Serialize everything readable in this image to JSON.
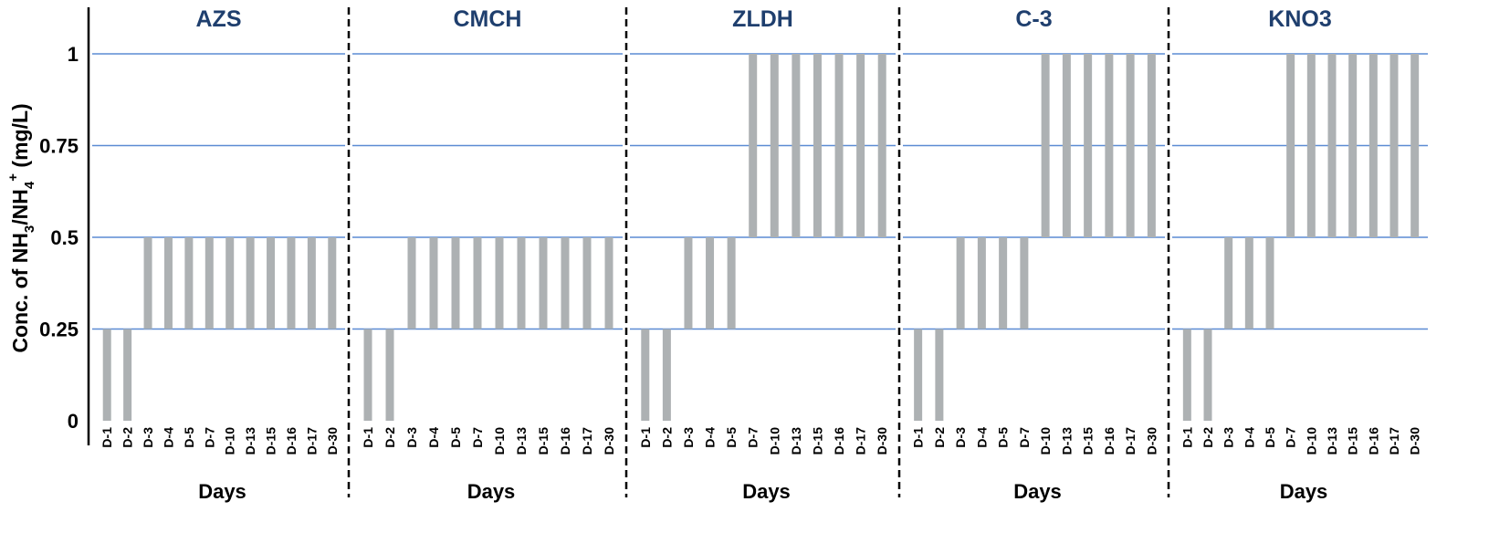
{
  "chart_data": {
    "type": "bar",
    "ylabel": {
      "prefix": "Conc. of NH",
      "sub1": "3",
      "middle": "/NH",
      "sub2": "4",
      "sup": "+",
      "suffix": " (mg/L)"
    },
    "xlabel": "Days",
    "ylim": [
      0,
      1.125
    ],
    "yticks": [
      0,
      0.25,
      0.5,
      0.75,
      1
    ],
    "ytick_labels": [
      "0",
      "0.25",
      "0.5",
      "0.75",
      "1"
    ],
    "grid": "horizontal",
    "bar_color": "#adb1b3",
    "grid_color": "#5b8bd3",
    "title_color": "#1f3f6e",
    "panels": [
      {
        "title": "AZS",
        "categories": [
          "D-1",
          "D-2",
          "D-3",
          "D-4",
          "D-5",
          "D-7",
          "D-10",
          "D-13",
          "D-15",
          "D-16",
          "D-17",
          "D-30"
        ],
        "ranges": [
          [
            0,
            0.25
          ],
          [
            0,
            0.25
          ],
          [
            0.25,
            0.5
          ],
          [
            0.25,
            0.5
          ],
          [
            0.25,
            0.5
          ],
          [
            0.25,
            0.5
          ],
          [
            0.25,
            0.5
          ],
          [
            0.25,
            0.5
          ],
          [
            0.25,
            0.5
          ],
          [
            0.25,
            0.5
          ],
          [
            0.25,
            0.5
          ],
          [
            0.25,
            0.5
          ]
        ]
      },
      {
        "title": "CMCH",
        "categories": [
          "D-1",
          "D-2",
          "D-3",
          "D-4",
          "D-5",
          "D-7",
          "D-10",
          "D-13",
          "D-15",
          "D-16",
          "D-17",
          "D-30"
        ],
        "ranges": [
          [
            0,
            0.25
          ],
          [
            0,
            0.25
          ],
          [
            0.25,
            0.5
          ],
          [
            0.25,
            0.5
          ],
          [
            0.25,
            0.5
          ],
          [
            0.25,
            0.5
          ],
          [
            0.25,
            0.5
          ],
          [
            0.25,
            0.5
          ],
          [
            0.25,
            0.5
          ],
          [
            0.25,
            0.5
          ],
          [
            0.25,
            0.5
          ],
          [
            0.25,
            0.5
          ]
        ]
      },
      {
        "title": "ZLDH",
        "categories": [
          "D-1",
          "D-2",
          "D-3",
          "D-4",
          "D-5",
          "D-7",
          "D-10",
          "D-13",
          "D-15",
          "D-16",
          "D-17",
          "D-30"
        ],
        "ranges": [
          [
            0,
            0.25
          ],
          [
            0,
            0.25
          ],
          [
            0.25,
            0.5
          ],
          [
            0.25,
            0.5
          ],
          [
            0.25,
            0.5
          ],
          [
            0.5,
            1
          ],
          [
            0.5,
            1
          ],
          [
            0.5,
            1
          ],
          [
            0.5,
            1
          ],
          [
            0.5,
            1
          ],
          [
            0.5,
            1
          ],
          [
            0.5,
            1
          ]
        ]
      },
      {
        "title": "C-3",
        "categories": [
          "D-1",
          "D-2",
          "D-3",
          "D-4",
          "D-5",
          "D-7",
          "D-10",
          "D-13",
          "D-15",
          "D-16",
          "D-17",
          "D-30"
        ],
        "ranges": [
          [
            0,
            0.25
          ],
          [
            0,
            0.25
          ],
          [
            0.25,
            0.5
          ],
          [
            0.25,
            0.5
          ],
          [
            0.25,
            0.5
          ],
          [
            0.25,
            0.5
          ],
          [
            0.5,
            1
          ],
          [
            0.5,
            1
          ],
          [
            0.5,
            1
          ],
          [
            0.5,
            1
          ],
          [
            0.5,
            1
          ],
          [
            0.5,
            1
          ]
        ]
      },
      {
        "title": "KNO3",
        "categories": [
          "D-1",
          "D-2",
          "D-3",
          "D-4",
          "D-5",
          "D-7",
          "D-10",
          "D-13",
          "D-15",
          "D-16",
          "D-17",
          "D-30"
        ],
        "ranges": [
          [
            0,
            0.25
          ],
          [
            0,
            0.25
          ],
          [
            0.25,
            0.5
          ],
          [
            0.25,
            0.5
          ],
          [
            0.25,
            0.5
          ],
          [
            0.5,
            1
          ],
          [
            0.5,
            1
          ],
          [
            0.5,
            1
          ],
          [
            0.5,
            1
          ],
          [
            0.5,
            1
          ],
          [
            0.5,
            1
          ],
          [
            0.5,
            1
          ]
        ]
      }
    ]
  }
}
